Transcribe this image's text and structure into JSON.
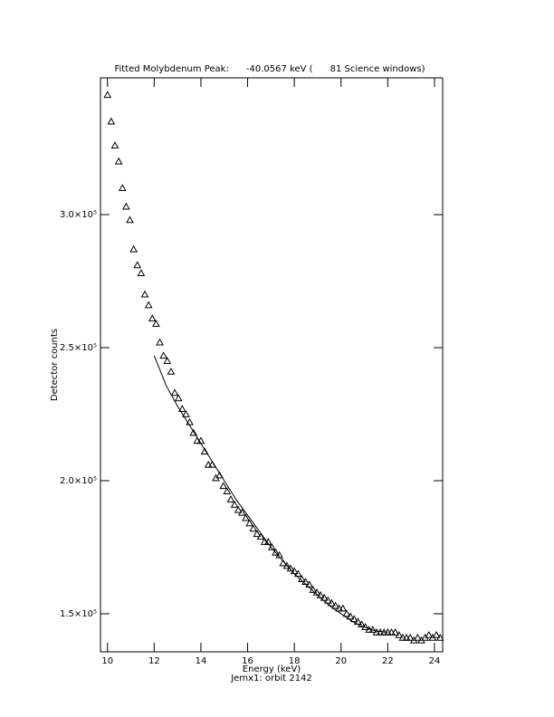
{
  "chart_data": {
    "type": "scatter",
    "title": "Fitted Molybdenum Peak:      -40.0567 keV (      81 Science windows)",
    "xlabel": "Energy (keV)",
    "subtitle": "Jemx1: orbit 2142",
    "ylabel": "Detector counts",
    "marker": "triangle",
    "color": "#000000",
    "x": [
      10.0,
      10.16,
      10.32,
      10.48,
      10.64,
      10.8,
      10.96,
      11.12,
      11.28,
      11.44,
      11.6,
      11.76,
      11.92,
      12.08,
      12.24,
      12.4,
      12.56,
      12.72,
      12.88,
      13.04,
      13.2,
      13.36,
      13.52,
      13.68,
      13.84,
      14.0,
      14.16,
      14.32,
      14.48,
      14.64,
      14.8,
      14.96,
      15.12,
      15.28,
      15.44,
      15.6,
      15.76,
      15.92,
      16.08,
      16.24,
      16.4,
      16.56,
      16.72,
      16.88,
      17.04,
      17.2,
      17.36,
      17.52,
      17.68,
      17.84,
      18.0,
      18.16,
      18.32,
      18.48,
      18.64,
      18.8,
      18.96,
      19.12,
      19.28,
      19.44,
      19.6,
      19.76,
      19.92,
      20.08,
      20.24,
      20.4,
      20.56,
      20.72,
      20.88,
      21.04,
      21.2,
      21.36,
      21.52,
      21.68,
      21.84,
      22.0,
      22.16,
      22.32,
      22.48,
      22.64,
      22.8,
      22.96,
      23.12,
      23.28,
      23.44,
      23.6,
      23.76,
      23.92,
      24.08,
      24.24
    ],
    "values": [
      345000,
      335000,
      326000,
      320000,
      310000,
      303000,
      298000,
      287000,
      281000,
      278000,
      270000,
      266000,
      261000,
      259000,
      252000,
      247000,
      245000,
      241000,
      233000,
      231000,
      227000,
      225000,
      222000,
      218000,
      215000,
      215000,
      211000,
      206000,
      206000,
      201000,
      202000,
      198000,
      196000,
      193000,
      191000,
      189000,
      188000,
      186000,
      184000,
      182000,
      180000,
      179000,
      177000,
      177000,
      175000,
      173000,
      172000,
      169000,
      168000,
      167000,
      166000,
      165000,
      163000,
      162000,
      161000,
      159000,
      158000,
      157000,
      156000,
      155000,
      154000,
      153000,
      152000,
      152000,
      150000,
      149000,
      148000,
      147000,
      146000,
      145000,
      144000,
      144000,
      143000,
      143000,
      143000,
      143000,
      143000,
      143000,
      142000,
      141000,
      141000,
      141000,
      140000,
      141000,
      140000,
      141000,
      142000,
      141000,
      142000,
      141000
    ],
    "fit": {
      "x": [
        12.0,
        12.5,
        13.0,
        13.5,
        14.0,
        14.5,
        15.0,
        15.5,
        16.0,
        16.5,
        17.0,
        17.5,
        18.0,
        18.5,
        19.0,
        19.5,
        20.0,
        20.5,
        21.0,
        21.5,
        22.0
      ],
      "values": [
        247000,
        236000,
        228000,
        221000,
        214000,
        207000,
        200000,
        193000,
        187000,
        181000,
        175000,
        170000,
        165000,
        161000,
        157000,
        153000,
        150000,
        147000,
        145000,
        143500,
        143000
      ]
    },
    "xlim": [
      9.7,
      24.35
    ],
    "ylim": [
      135700,
      351400
    ],
    "xticks": [
      10,
      12,
      14,
      16,
      18,
      20,
      22,
      24
    ],
    "yticks": [
      {
        "value": 150000,
        "label": "1.5×10⁵"
      },
      {
        "value": 200000,
        "label": "2.0×10⁵"
      },
      {
        "value": 250000,
        "label": "2.5×10⁵"
      },
      {
        "value": 300000,
        "label": "3.0×10⁵"
      }
    ]
  }
}
